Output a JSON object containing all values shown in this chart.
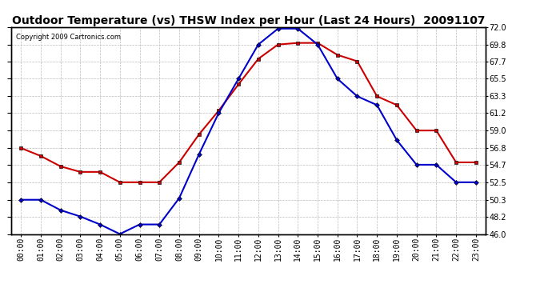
{
  "title": "Outdoor Temperature (vs) THSW Index per Hour (Last 24 Hours)  20091107",
  "copyright": "Copyright 2009 Cartronics.com",
  "hours": [
    "00:00",
    "01:00",
    "02:00",
    "03:00",
    "04:00",
    "05:00",
    "06:00",
    "07:00",
    "08:00",
    "09:00",
    "10:00",
    "11:00",
    "12:00",
    "13:00",
    "14:00",
    "15:00",
    "16:00",
    "17:00",
    "18:00",
    "19:00",
    "20:00",
    "21:00",
    "22:00",
    "23:00"
  ],
  "temp_red": [
    56.8,
    55.8,
    54.5,
    53.8,
    53.8,
    52.5,
    52.5,
    52.5,
    55.0,
    58.5,
    61.5,
    64.8,
    68.0,
    69.8,
    70.0,
    70.0,
    68.5,
    67.7,
    63.3,
    62.2,
    59.0,
    59.0,
    55.0,
    55.0
  ],
  "thsw_blue": [
    50.3,
    50.3,
    49.0,
    48.2,
    47.2,
    46.0,
    47.2,
    47.2,
    50.5,
    56.0,
    61.2,
    65.5,
    69.8,
    71.8,
    71.8,
    69.8,
    65.5,
    63.3,
    62.2,
    57.8,
    54.7,
    54.7,
    52.5,
    52.5
  ],
  "ylim_min": 46.0,
  "ylim_max": 72.0,
  "yticks": [
    46.0,
    48.2,
    50.3,
    52.5,
    54.7,
    56.8,
    59.0,
    61.2,
    63.3,
    65.5,
    67.7,
    69.8,
    72.0
  ],
  "bg_color": "#ffffff",
  "plot_bg_color": "#ffffff",
  "grid_color": "#bbbbbb",
  "red_color": "#cc0000",
  "blue_color": "#0000cc",
  "title_fontsize": 10,
  "copyright_fontsize": 6,
  "tick_fontsize": 7
}
